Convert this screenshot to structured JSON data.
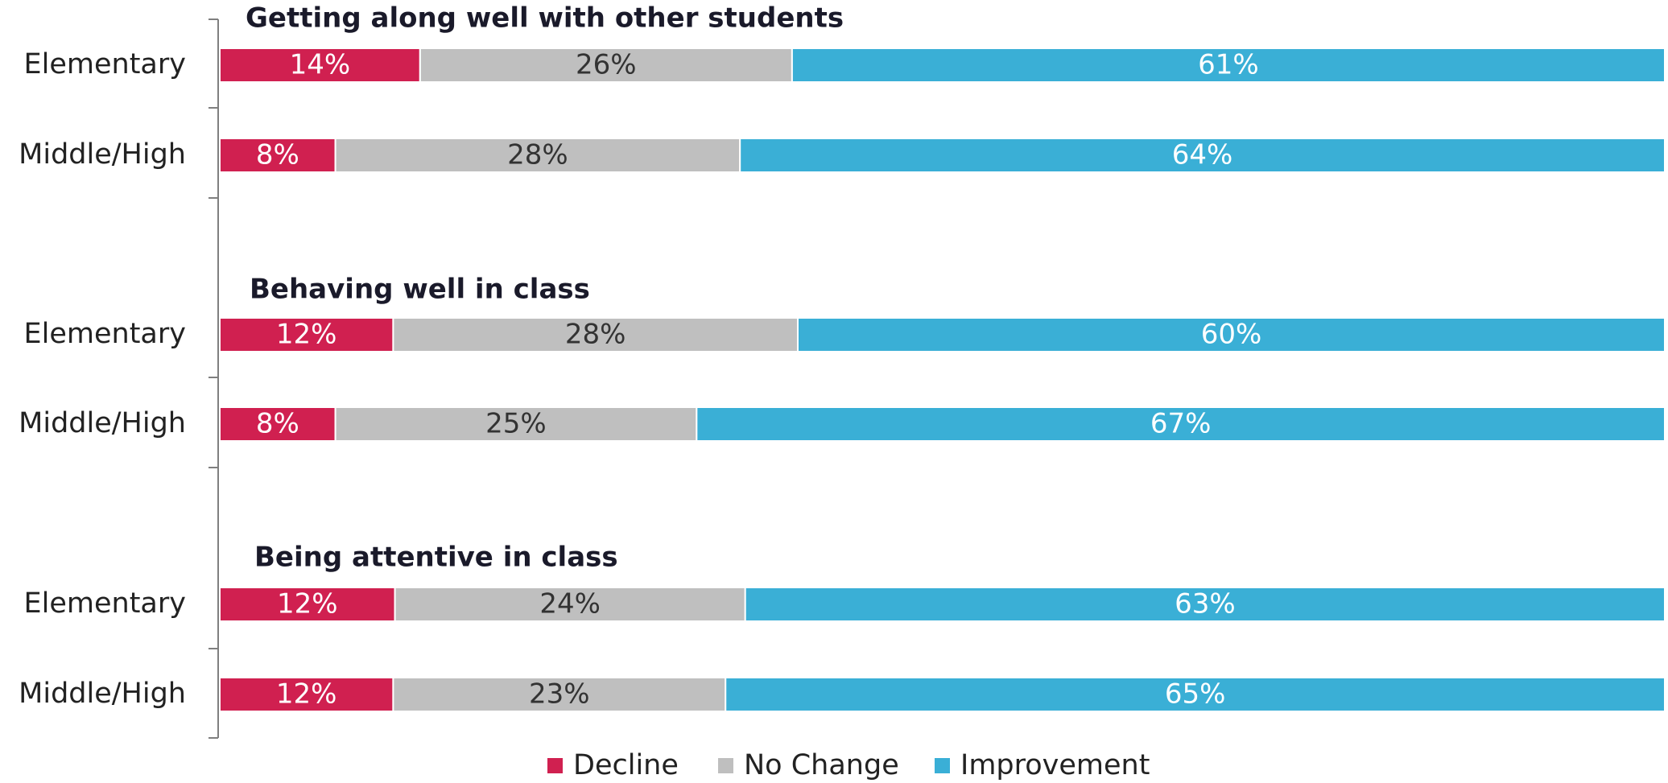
{
  "chart_data": {
    "type": "bar",
    "orientation": "horizontal",
    "stacked": true,
    "legend": "bottom",
    "groups": [
      {
        "title": "Getting along well with other students"
      },
      {
        "title": "Behaving well in class"
      },
      {
        "title": "Being attentive in class"
      }
    ],
    "categories": [
      "Elementary",
      "Middle/High",
      "Elementary",
      "Middle/High",
      "Elementary",
      "Middle/High"
    ],
    "series": [
      {
        "name": "Decline",
        "color": "#d02050",
        "label_color": "#ffffff",
        "values": [
          14,
          8,
          12,
          8,
          12,
          12
        ],
        "value_labels": [
          "14%",
          "8%",
          "12%",
          "8%",
          "12%",
          "12%"
        ]
      },
      {
        "name": "No Change",
        "color": "#bfbfbf",
        "label_color": "#333333",
        "values": [
          26,
          28,
          28,
          25,
          24,
          23
        ],
        "value_labels": [
          "26%",
          "28%",
          "28%",
          "25%",
          "24%",
          "23%"
        ]
      },
      {
        "name": "Improvement",
        "color": "#3aafd6",
        "label_color": "#ffffff",
        "values": [
          61,
          64,
          60,
          67,
          63,
          65
        ],
        "value_labels": [
          "61%",
          "64%",
          "60%",
          "67%",
          "63%",
          "65%"
        ]
      }
    ]
  }
}
